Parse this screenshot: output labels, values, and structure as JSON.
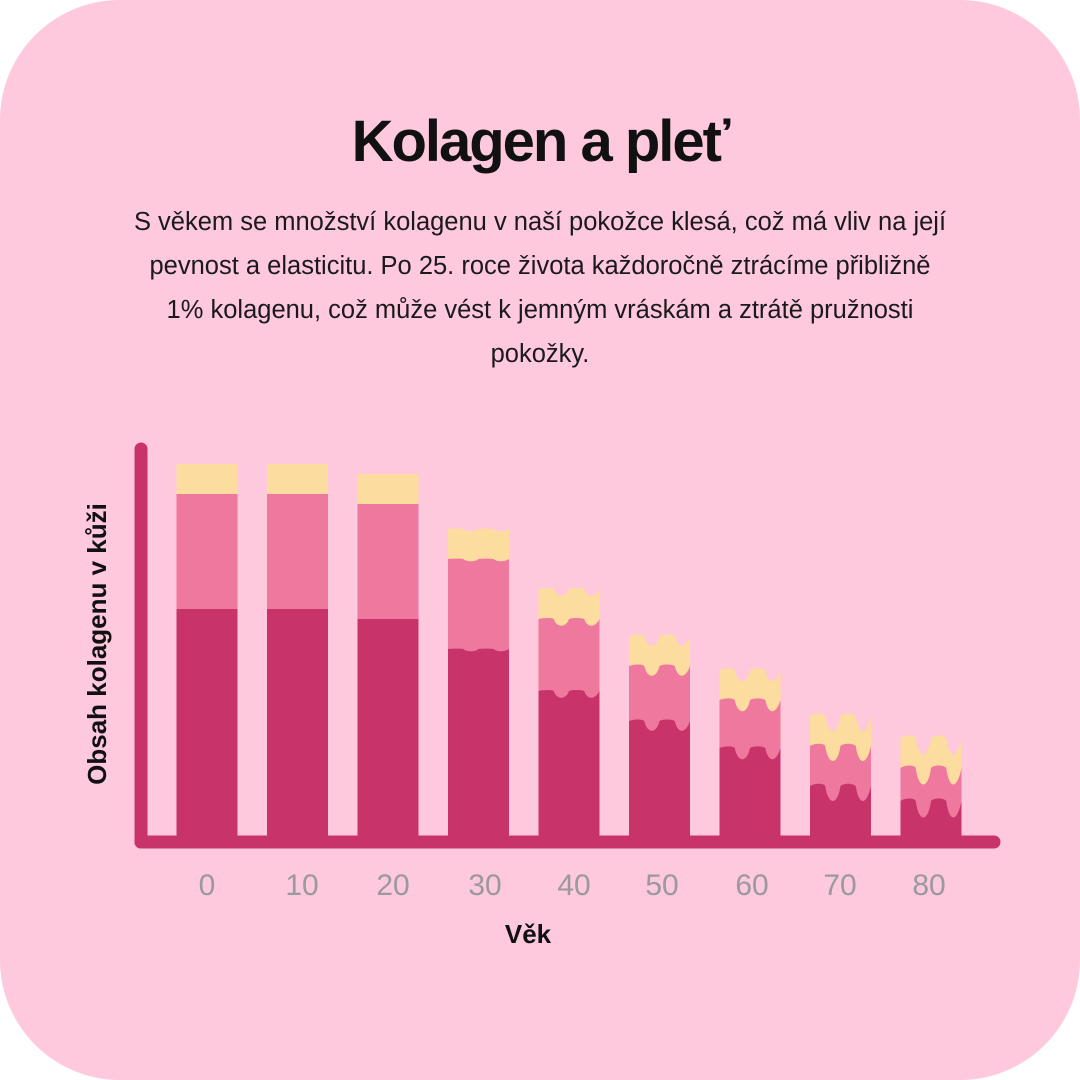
{
  "title": "Kolagen a pleť",
  "description": "S věkem se množství kolagenu v naší pokožce klesá, což má vliv na její pevnost a elasticitu. Po 25. roce života každoročně ztrácíme přibližně 1% kolagenu, což může vést k jemným vráskám a ztrátě pružnosti pokožky.",
  "chart_data": {
    "type": "bar",
    "stacked": true,
    "categories": [
      "0",
      "10",
      "20",
      "30",
      "40",
      "50",
      "60",
      "70",
      "80"
    ],
    "series": [
      {
        "values": [
          227,
          227,
          217,
          187,
          145,
          115,
          88,
          50,
          35
        ]
      },
      {
        "values": [
          115,
          115,
          115,
          90,
          72,
          55,
          48,
          40,
          33
        ]
      },
      {
        "values": [
          30,
          30,
          30,
          30,
          30,
          30,
          30,
          30,
          30
        ]
      }
    ],
    "colors": [
      "#c8336a",
      "#ee789e",
      "#fddca0"
    ],
    "xlabel": "Věk",
    "ylabel": "Obsah kolagenu v kůži",
    "ylim": [
      0,
      400
    ],
    "axis_color": "#c8336a",
    "grid": false,
    "legend": "none"
  }
}
